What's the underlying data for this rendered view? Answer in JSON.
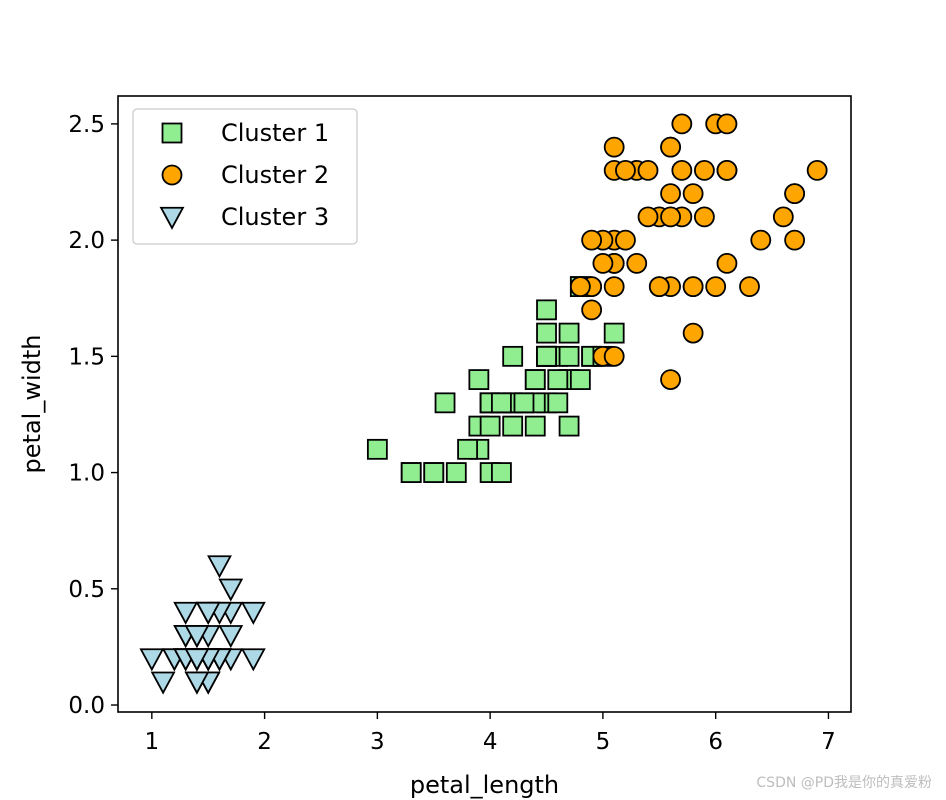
{
  "chart_data": {
    "type": "scatter",
    "xlabel": "petal_length",
    "ylabel": "petal_width",
    "xlim": [
      0.7,
      7.2
    ],
    "ylim": [
      -0.03,
      2.62
    ],
    "xticks": [
      1,
      2,
      3,
      4,
      5,
      6,
      7
    ],
    "xtick_labels": [
      "1",
      "2",
      "3",
      "4",
      "5",
      "6",
      "7"
    ],
    "yticks": [
      0.0,
      0.5,
      1.0,
      1.5,
      2.0,
      2.5
    ],
    "ytick_labels": [
      "0.0",
      "0.5",
      "1.0",
      "1.5",
      "2.0",
      "2.5"
    ],
    "grid": false,
    "legend_position": "top-left",
    "series": [
      {
        "name": "Cluster 1",
        "marker": "square",
        "color": "#90ee90",
        "x": [
          4.7,
          4.5,
          4.9,
          4.0,
          4.6,
          4.5,
          4.7,
          3.3,
          4.6,
          3.9,
          3.5,
          4.2,
          4.0,
          4.7,
          3.6,
          4.4,
          4.5,
          4.1,
          4.5,
          3.9,
          4.8,
          4.0,
          4.9,
          4.7,
          4.3,
          4.4,
          4.8,
          4.5,
          3.5,
          3.8,
          3.7,
          3.9,
          5.1,
          4.5,
          4.5,
          4.7,
          4.4,
          4.1,
          4.0,
          4.4,
          4.6,
          4.0,
          3.3,
          4.2,
          4.2,
          4.2,
          4.3,
          3.0,
          4.1,
          5.0,
          4.5,
          4.8
        ],
        "y": [
          1.4,
          1.5,
          1.5,
          1.3,
          1.5,
          1.3,
          1.6,
          1.0,
          1.3,
          1.4,
          1.0,
          1.5,
          1.0,
          1.4,
          1.3,
          1.4,
          1.5,
          1.0,
          1.5,
          1.1,
          1.8,
          1.3,
          1.5,
          1.2,
          1.3,
          1.4,
          1.4,
          1.7,
          1.0,
          1.1,
          1.0,
          1.2,
          1.6,
          1.5,
          1.6,
          1.5,
          1.3,
          1.3,
          1.3,
          1.2,
          1.4,
          1.2,
          1.0,
          1.3,
          1.2,
          1.3,
          1.3,
          1.1,
          1.3,
          1.5,
          1.5,
          1.8
        ]
      },
      {
        "name": "Cluster 2",
        "marker": "circle",
        "color": "#ffa500",
        "x": [
          6.0,
          5.1,
          5.9,
          5.6,
          5.8,
          6.6,
          4.9,
          6.3,
          5.8,
          6.1,
          5.1,
          5.3,
          5.5,
          5.0,
          5.1,
          5.3,
          5.5,
          6.7,
          6.9,
          5.0,
          5.7,
          4.9,
          6.7,
          4.9,
          5.7,
          6.0,
          4.8,
          4.9,
          5.6,
          5.8,
          6.1,
          6.4,
          5.6,
          5.1,
          5.6,
          6.1,
          5.6,
          5.5,
          4.8,
          5.4,
          5.6,
          5.1,
          5.1,
          5.9,
          5.7,
          5.2,
          5.0,
          5.2,
          5.4,
          5.1,
          6.1,
          6.7,
          5.8
        ],
        "y": [
          2.5,
          1.9,
          2.1,
          1.8,
          2.2,
          2.1,
          1.7,
          1.8,
          1.8,
          2.5,
          2.0,
          1.9,
          2.1,
          2.0,
          2.4,
          2.3,
          1.8,
          2.2,
          2.3,
          1.5,
          2.3,
          2.0,
          2.0,
          1.8,
          2.1,
          1.8,
          1.8,
          1.8,
          2.1,
          1.6,
          1.9,
          2.0,
          2.2,
          1.5,
          1.4,
          2.3,
          2.4,
          1.8,
          1.8,
          2.1,
          2.4,
          2.3,
          1.9,
          2.3,
          2.5,
          2.3,
          1.9,
          2.0,
          2.3,
          1.8,
          2.3,
          2.2,
          1.8
        ]
      },
      {
        "name": "Cluster 3",
        "marker": "triangle-down",
        "color": "#add8e6",
        "x": [
          1.4,
          1.4,
          1.3,
          1.5,
          1.4,
          1.7,
          1.4,
          1.5,
          1.4,
          1.5,
          1.5,
          1.6,
          1.4,
          1.1,
          1.2,
          1.5,
          1.3,
          1.4,
          1.7,
          1.5,
          1.7,
          1.5,
          1.0,
          1.7,
          1.9,
          1.6,
          1.6,
          1.5,
          1.4,
          1.6,
          1.6,
          1.5,
          1.5,
          1.4,
          1.5,
          1.2,
          1.3,
          1.4,
          1.3,
          1.5,
          1.3,
          1.3,
          1.3,
          1.6,
          1.9,
          1.4,
          1.6,
          1.4,
          1.5,
          1.4
        ],
        "y": [
          0.2,
          0.2,
          0.2,
          0.2,
          0.2,
          0.4,
          0.3,
          0.2,
          0.2,
          0.1,
          0.2,
          0.2,
          0.1,
          0.1,
          0.2,
          0.4,
          0.4,
          0.3,
          0.3,
          0.3,
          0.2,
          0.4,
          0.2,
          0.5,
          0.2,
          0.2,
          0.4,
          0.2,
          0.2,
          0.2,
          0.2,
          0.4,
          0.1,
          0.2,
          0.2,
          0.2,
          0.2,
          0.1,
          0.2,
          0.2,
          0.3,
          0.3,
          0.2,
          0.6,
          0.4,
          0.3,
          0.2,
          0.2,
          0.2,
          0.2
        ]
      }
    ]
  },
  "watermark": "CSDN @PD我是你的真爱粉"
}
